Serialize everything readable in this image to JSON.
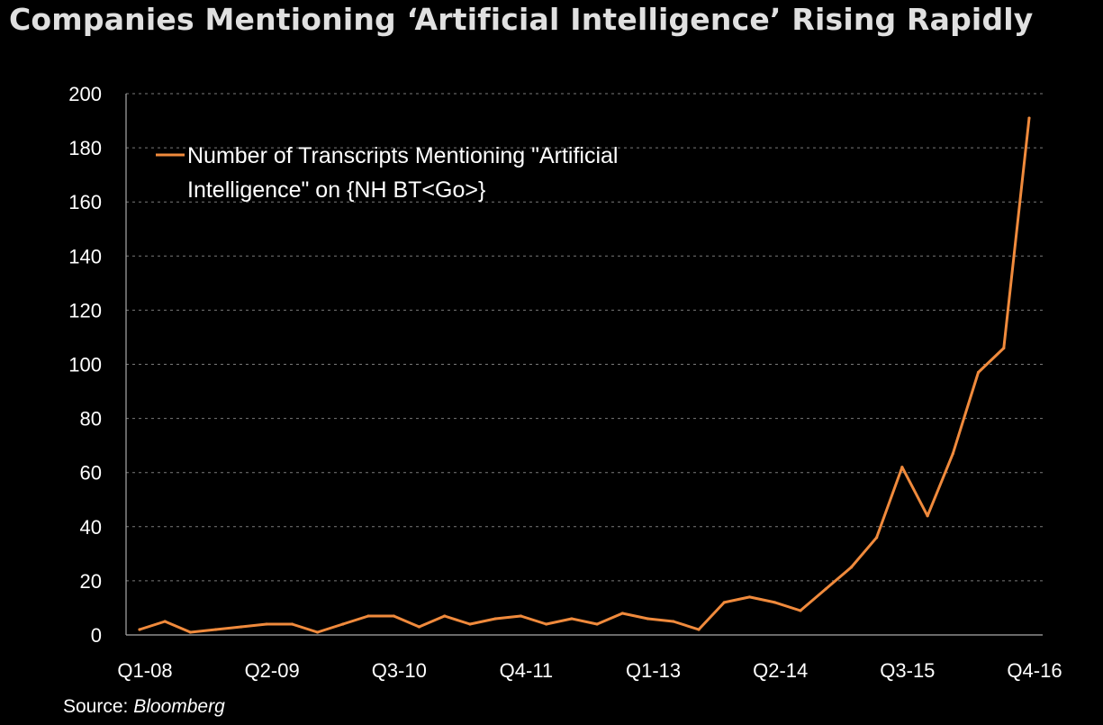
{
  "title": "Companies Mentioning ‘Artificial Intelligence’ Rising Rapidly",
  "source": {
    "label": "Source:",
    "name": "Bloomberg"
  },
  "colors": {
    "line": "#f08a3c",
    "background": "#000000",
    "grid": "#7a7a7a",
    "text": "#ffffff"
  },
  "chart_data": {
    "type": "line",
    "title": "Companies Mentioning ‘Artificial Intelligence’ Rising Rapidly",
    "xlabel": "",
    "ylabel": "",
    "ylim": [
      0,
      200
    ],
    "y_ticks": [
      0,
      20,
      40,
      60,
      80,
      100,
      120,
      140,
      160,
      180,
      200
    ],
    "grid": true,
    "legend_position": "top-left",
    "x_tick_labels": [
      "Q1-08",
      "Q2-09",
      "Q3-10",
      "Q4-11",
      "Q1-13",
      "Q2-14",
      "Q3-15",
      "Q4-16"
    ],
    "x_tick_indices": [
      0,
      5,
      10,
      15,
      20,
      25,
      30,
      35
    ],
    "categories": [
      "Q1-08",
      "Q2-08",
      "Q3-08",
      "Q4-08",
      "Q1-09",
      "Q2-09",
      "Q3-09",
      "Q4-09",
      "Q1-10",
      "Q2-10",
      "Q3-10",
      "Q4-10",
      "Q1-11",
      "Q2-11",
      "Q3-11",
      "Q4-11",
      "Q1-12",
      "Q2-12",
      "Q3-12",
      "Q4-12",
      "Q1-13",
      "Q2-13",
      "Q3-13",
      "Q4-13",
      "Q1-14",
      "Q2-14",
      "Q3-14",
      "Q4-14",
      "Q1-15",
      "Q2-15",
      "Q3-15",
      "Q4-15",
      "Q1-16",
      "Q2-16",
      "Q3-16",
      "Q4-16"
    ],
    "series": [
      {
        "name": "Number of Transcripts Mentioning \"Artificial Intelligence\" on {NH BT<Go>}",
        "legend_lines": [
          "Number of Transcripts Mentioning \"Artificial",
          "Intelligence\" on {NH BT<Go>}"
        ],
        "values": [
          2,
          5,
          1,
          2,
          3,
          4,
          4,
          1,
          4,
          7,
          7,
          3,
          7,
          4,
          6,
          7,
          4,
          6,
          4,
          8,
          6,
          5,
          2,
          12,
          14,
          12,
          9,
          17,
          25,
          36,
          62,
          44,
          67,
          97,
          106,
          191
        ]
      }
    ]
  }
}
